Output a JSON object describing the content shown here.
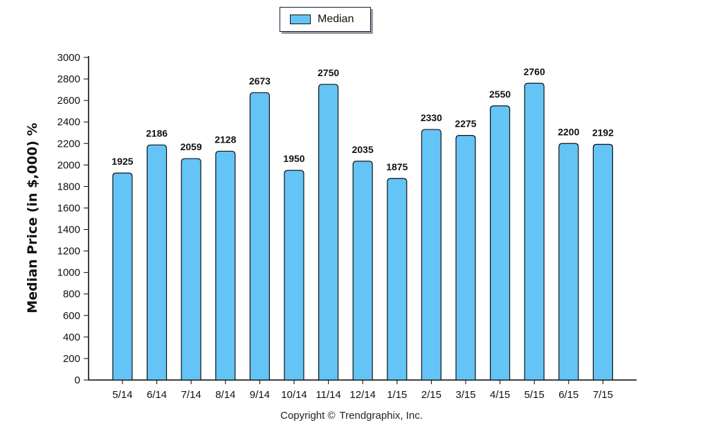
{
  "legend": {
    "label": "Median",
    "swatch_color": "#63c4f5"
  },
  "footer": {
    "copyright": "Copyright ©",
    "owner": "Trendgraphix, Inc."
  },
  "chart_data": {
    "type": "bar",
    "title": "",
    "ylabel": "Median Price (in $,000) %",
    "xlabel": "",
    "categories": [
      "5/14",
      "6/14",
      "7/14",
      "8/14",
      "9/14",
      "10/14",
      "11/14",
      "12/14",
      "1/15",
      "2/15",
      "3/15",
      "4/15",
      "5/15",
      "6/15",
      "7/15"
    ],
    "series": [
      {
        "name": "Median",
        "color": "#63c4f5",
        "values": [
          1925,
          2186,
          2059,
          2128,
          2673,
          1950,
          2750,
          2035,
          1875,
          2330,
          2275,
          2550,
          2760,
          2200,
          2192
        ]
      }
    ],
    "ylim": [
      0,
      3000
    ],
    "yticks": [
      0,
      200,
      400,
      600,
      800,
      1000,
      1200,
      1400,
      1600,
      1800,
      2000,
      2200,
      2400,
      2600,
      2800,
      3000
    ],
    "grid": false,
    "legend_position": "top-center"
  }
}
